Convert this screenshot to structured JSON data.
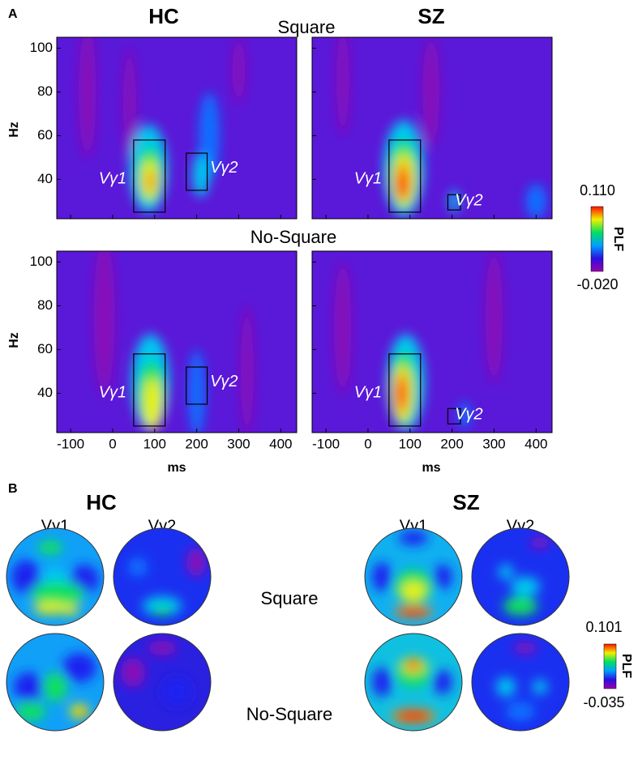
{
  "panel_a": {
    "label": "A",
    "groups": [
      "HC",
      "SZ"
    ],
    "conditions": [
      "Square",
      "No-Square"
    ],
    "y_label": "Hz",
    "x_label": "ms",
    "xlim": [
      -133,
      438
    ],
    "xticks": [
      -100,
      0,
      100,
      200,
      300,
      400
    ],
    "ylim": [
      22,
      105
    ],
    "yticks": [
      40,
      60,
      80,
      100
    ],
    "window_labels": [
      "Vγ1",
      "Vγ2"
    ],
    "colorbar": {
      "title": "PLF",
      "max": {
        "value": 0.11,
        "label": "0.110"
      },
      "min": {
        "value": -0.02,
        "label": "-0.020"
      }
    }
  },
  "panel_b": {
    "label": "B",
    "groups": [
      "HC",
      "SZ"
    ],
    "windows": [
      "Vγ1",
      "Vγ2"
    ],
    "conditions": [
      "Square",
      "No-Square"
    ],
    "colorbar": {
      "title": "PLF",
      "max": 0.101,
      "min": -0.035
    }
  }
}
